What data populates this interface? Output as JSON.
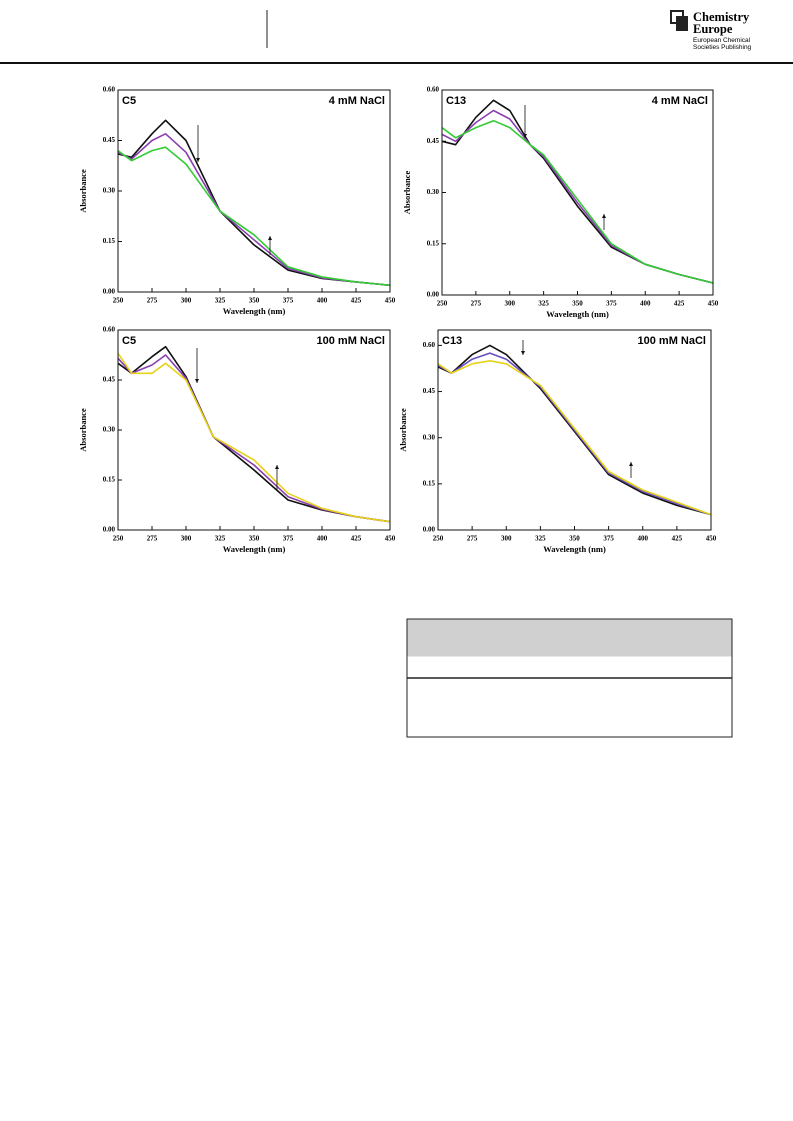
{
  "header": {
    "brand": [
      "Chemistry",
      "Europe"
    ],
    "publisher": [
      "European Chemical",
      "Societies Publishing"
    ]
  },
  "chart_data": [
    {
      "type": "line",
      "title": "C5",
      "subtitle": "4 mM NaCl",
      "x_label": "Wavelength (nm)",
      "y_label": "Absorbance",
      "x": [
        250,
        260,
        275,
        285,
        300,
        325,
        350,
        375,
        400,
        425,
        450
      ],
      "series": [
        {
          "color": "#111111",
          "values": [
            0.41,
            0.4,
            0.47,
            0.51,
            0.45,
            0.24,
            0.14,
            0.065,
            0.04,
            0.03,
            0.02
          ]
        },
        {
          "color": "#8a3fb0",
          "values": [
            0.415,
            0.395,
            0.45,
            0.47,
            0.415,
            0.24,
            0.155,
            0.07,
            0.042,
            0.03,
            0.02
          ]
        },
        {
          "color": "#33cc33",
          "values": [
            0.42,
            0.39,
            0.42,
            0.43,
            0.38,
            0.24,
            0.17,
            0.075,
            0.045,
            0.03,
            0.02
          ]
        }
      ],
      "xlim": [
        250,
        450
      ],
      "xticks": [
        250,
        275,
        300,
        325,
        350,
        375,
        400,
        425,
        450
      ],
      "ylim": [
        0,
        0.6
      ],
      "yticks": [
        {
          "value": 0,
          "label": "0.00"
        },
        {
          "value": 0.15,
          "label": "0.15"
        },
        {
          "value": 0.3,
          "label": "0.30"
        },
        {
          "value": 0.45,
          "label": "0.45"
        },
        {
          "value": 0.6,
          "label": "0.60"
        }
      ]
    },
    {
      "type": "line",
      "title": "C13",
      "subtitle": "4 mM NaCl",
      "x_label": "Wavelength (nm)",
      "y_label": "Absorbance",
      "x": [
        250,
        260,
        275,
        288,
        300,
        315,
        325,
        350,
        375,
        400,
        425,
        450
      ],
      "series": [
        {
          "color": "#111111",
          "values": [
            0.45,
            0.44,
            0.52,
            0.57,
            0.54,
            0.44,
            0.4,
            0.26,
            0.14,
            0.09,
            0.06,
            0.035
          ]
        },
        {
          "color": "#8a3fb0",
          "values": [
            0.47,
            0.45,
            0.505,
            0.54,
            0.515,
            0.44,
            0.405,
            0.27,
            0.145,
            0.09,
            0.06,
            0.035
          ]
        },
        {
          "color": "#33cc33",
          "values": [
            0.49,
            0.46,
            0.49,
            0.51,
            0.49,
            0.44,
            0.41,
            0.28,
            0.15,
            0.09,
            0.06,
            0.035
          ]
        }
      ],
      "xlim": [
        250,
        450
      ],
      "xticks": [
        250,
        275,
        300,
        325,
        350,
        375,
        400,
        425,
        450
      ],
      "ylim": [
        0,
        0.6
      ],
      "yticks": [
        {
          "value": 0,
          "label": "0.00"
        },
        {
          "value": 0.15,
          "label": "0.15"
        },
        {
          "value": 0.3,
          "label": "0.30"
        },
        {
          "value": 0.45,
          "label": "0.45"
        },
        {
          "value": 0.6,
          "label": "0.60"
        }
      ]
    },
    {
      "type": "line",
      "title": "C5",
      "subtitle": "100 mM NaCl",
      "x_label": "Wavelength (nm)",
      "y_label": "Absorbance",
      "x": [
        250,
        260,
        275,
        285,
        300,
        320,
        350,
        375,
        400,
        425,
        450
      ],
      "series": [
        {
          "color": "#111111",
          "values": [
            0.5,
            0.47,
            0.52,
            0.55,
            0.46,
            0.28,
            0.18,
            0.09,
            0.06,
            0.04,
            0.025
          ]
        },
        {
          "color": "#8a3fb0",
          "values": [
            0.515,
            0.47,
            0.495,
            0.525,
            0.455,
            0.28,
            0.195,
            0.1,
            0.062,
            0.04,
            0.025
          ]
        },
        {
          "color": "#e6d21a",
          "values": [
            0.53,
            0.47,
            0.47,
            0.5,
            0.45,
            0.28,
            0.21,
            0.11,
            0.065,
            0.04,
            0.025
          ]
        }
      ],
      "xlim": [
        250,
        450
      ],
      "xticks": [
        250,
        275,
        300,
        325,
        350,
        375,
        400,
        425,
        450
      ],
      "ylim": [
        0,
        0.6
      ],
      "yticks": [
        {
          "value": 0,
          "label": "0.00"
        },
        {
          "value": 0.15,
          "label": "0.15"
        },
        {
          "value": 0.3,
          "label": "0.30"
        },
        {
          "value": 0.45,
          "label": "0.45"
        },
        {
          "value": 0.6,
          "label": "0.60"
        }
      ]
    },
    {
      "type": "line",
      "title": "C13",
      "subtitle": "100 mM NaCl",
      "x_label": "Wavelength (nm)",
      "y_label": "Absorbance",
      "x": [
        250,
        260,
        275,
        288,
        300,
        325,
        350,
        375,
        400,
        425,
        450
      ],
      "series": [
        {
          "color": "#111111",
          "values": [
            0.53,
            0.51,
            0.57,
            0.6,
            0.57,
            0.46,
            0.32,
            0.18,
            0.12,
            0.08,
            0.05
          ]
        },
        {
          "color": "#6a4fc0",
          "values": [
            0.535,
            0.51,
            0.555,
            0.575,
            0.555,
            0.465,
            0.325,
            0.185,
            0.125,
            0.085,
            0.05
          ]
        },
        {
          "color": "#e6d21a",
          "values": [
            0.54,
            0.51,
            0.54,
            0.55,
            0.54,
            0.47,
            0.33,
            0.19,
            0.13,
            0.09,
            0.05
          ]
        }
      ],
      "xlim": [
        250,
        450
      ],
      "xticks": [
        250,
        275,
        300,
        325,
        350,
        375,
        400,
        425,
        450
      ],
      "ylim": [
        0,
        0.65
      ],
      "yticks": [
        {
          "value": 0,
          "label": "0.00"
        },
        {
          "value": 0.15,
          "label": "0.15"
        },
        {
          "value": 0.3,
          "label": "0.30"
        },
        {
          "value": 0.45,
          "label": "0.45"
        },
        {
          "value": 0.6,
          "label": "0.60"
        }
      ]
    }
  ]
}
